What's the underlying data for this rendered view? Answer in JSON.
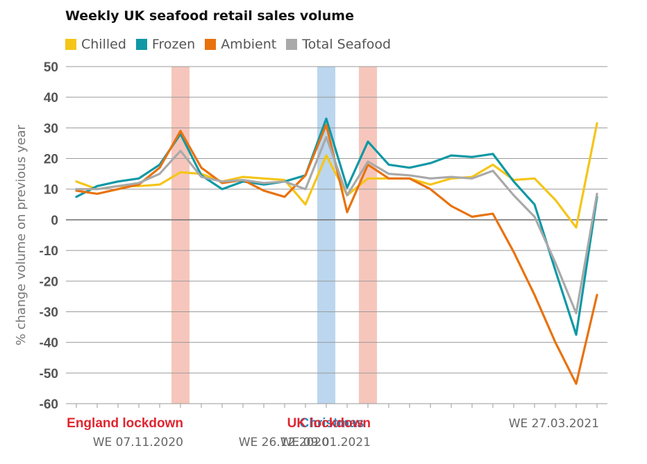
{
  "chart_data": {
    "type": "line",
    "title": "Weekly UK seafood retail sales volume",
    "ylabel": "% change volume on previous year",
    "ylim": [
      -60,
      50
    ],
    "yticks": [
      50,
      40,
      30,
      20,
      10,
      0,
      -10,
      -20,
      -30,
      -40,
      -50,
      -60
    ],
    "week_count": 26,
    "grid": true,
    "legend_position": "top",
    "series": [
      {
        "name": "Chilled",
        "color": "#F5C518",
        "values": [
          12.5,
          10,
          11,
          11,
          11.5,
          15.5,
          15,
          12.5,
          14,
          13.5,
          13,
          5,
          21,
          8,
          13.5,
          13.5,
          13.5,
          11.5,
          13.5,
          14,
          18,
          13,
          13.5,
          6.5,
          -2.5,
          31.5
        ]
      },
      {
        "name": "Frozen",
        "color": "#0E98A5",
        "values": [
          7.5,
          11,
          12.5,
          13.5,
          18,
          28,
          14.5,
          10,
          12.5,
          11.5,
          12.5,
          14.5,
          33,
          10.5,
          25.5,
          18,
          17,
          18.5,
          21,
          20.5,
          21.5,
          12.5,
          5,
          -16.5,
          -37.5,
          7.5
        ]
      },
      {
        "name": "Ambient",
        "color": "#E8720F",
        "values": [
          9.5,
          8.5,
          10,
          11.5,
          17,
          29,
          17,
          12,
          13,
          9.5,
          7.5,
          14.5,
          31,
          2.5,
          18,
          13.5,
          13.5,
          10,
          4.5,
          1,
          2,
          -10.5,
          -24.5,
          -40,
          -53.5,
          -24.5
        ]
      },
      {
        "name": "Total Seafood",
        "color": "#A9A9A9",
        "values": [
          10,
          10,
          11,
          12,
          15,
          22.5,
          14,
          12.5,
          13,
          12,
          12.5,
          10,
          27,
          8,
          19,
          15,
          14.5,
          13.5,
          14,
          13.5,
          16,
          8,
          1,
          -14,
          -30.5,
          8.5
        ]
      }
    ],
    "highlight_bands": [
      {
        "name": "England lockdown",
        "date": "WE 07.11.2020",
        "week_index": 5,
        "color": "#F6C6BC",
        "label_color": "#E0252F"
      },
      {
        "name": "Christmas",
        "date": "WE 26.12.2020",
        "week_index": 12,
        "color": "#BBD6EE",
        "label_color": "#1E8BC3"
      },
      {
        "name": "UK lockdown",
        "date": "WE 09.01.2021",
        "week_index": 14,
        "color": "#F6C6BC",
        "label_color": "#E0252F"
      }
    ],
    "end_label": {
      "date": "WE 27.03.2021",
      "week_index": 25
    }
  }
}
